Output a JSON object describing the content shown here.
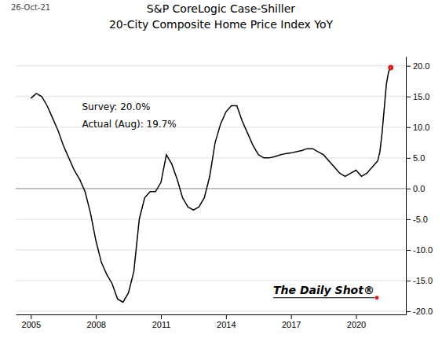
{
  "chart_data": {
    "type": "line",
    "title": "S&P CoreLogic Case-Shiller",
    "subtitle": "20-City Composite Home Price Index YoY",
    "annotations": [
      "26-Oct-21",
      "Survey:  20.0%",
      "Actual (Aug):  19.7%",
      "The Daily Shot®"
    ],
    "color": "#000000",
    "grid": true,
    "xlim": [
      2004.3,
      2022.3
    ],
    "xticks": [
      2005,
      2008,
      2011,
      2014,
      2017,
      2020
    ],
    "ylim": [
      -20.5,
      21.5
    ],
    "yticks": [
      {
        "value": -20.0,
        "label": "-20.0"
      },
      {
        "value": -15.0,
        "label": "-15.0"
      },
      {
        "value": -10.0,
        "label": "-10.0"
      },
      {
        "value": -5.0,
        "label": "-5.0"
      },
      {
        "value": 0.0,
        "label": "0.0"
      },
      {
        "value": 5.0,
        "label": "5.0"
      },
      {
        "value": 10.0,
        "label": "10.0"
      },
      {
        "value": 15.0,
        "label": "15.0"
      },
      {
        "value": 20.0,
        "label": "20.0"
      }
    ],
    "x": [
      2005.0,
      2005.25,
      2005.5,
      2005.75,
      2006.0,
      2006.25,
      2006.5,
      2006.75,
      2007.0,
      2007.25,
      2007.5,
      2007.75,
      2008.0,
      2008.25,
      2008.5,
      2008.75,
      2009.0,
      2009.25,
      2009.5,
      2009.75,
      2010.0,
      2010.25,
      2010.5,
      2010.75,
      2011.0,
      2011.25,
      2011.5,
      2011.75,
      2012.0,
      2012.25,
      2012.5,
      2012.75,
      2013.0,
      2013.25,
      2013.5,
      2013.75,
      2014.0,
      2014.25,
      2014.5,
      2014.75,
      2015.0,
      2015.25,
      2015.5,
      2015.75,
      2016.0,
      2016.25,
      2016.5,
      2016.75,
      2017.0,
      2017.25,
      2017.5,
      2017.75,
      2018.0,
      2018.25,
      2018.5,
      2018.75,
      2019.0,
      2019.25,
      2019.5,
      2019.75,
      2020.0,
      2020.25,
      2020.5,
      2020.75,
      2021.0,
      2021.1,
      2021.2,
      2021.3,
      2021.4,
      2021.5,
      2021.6
    ],
    "values": [
      14.7,
      15.5,
      15.0,
      13.5,
      11.5,
      9.5,
      7.0,
      5.0,
      3.0,
      1.5,
      -0.5,
      -4.0,
      -8.5,
      -12.0,
      -14.0,
      -15.5,
      -18.0,
      -18.5,
      -17.0,
      -13.5,
      -5.0,
      -1.5,
      -0.5,
      -0.5,
      1.0,
      5.5,
      4.0,
      1.5,
      -1.5,
      -3.0,
      -3.5,
      -3.0,
      -1.5,
      2.0,
      7.5,
      10.5,
      12.5,
      13.5,
      13.5,
      11.0,
      9.0,
      7.0,
      5.5,
      5.0,
      5.0,
      5.2,
      5.5,
      5.7,
      5.8,
      6.0,
      6.2,
      6.5,
      6.5,
      6.0,
      5.5,
      4.5,
      3.5,
      2.5,
      2.0,
      2.5,
      3.0,
      2.0,
      2.5,
      3.5,
      4.5,
      6.0,
      9.0,
      13.0,
      17.0,
      19.0,
      19.7
    ]
  }
}
